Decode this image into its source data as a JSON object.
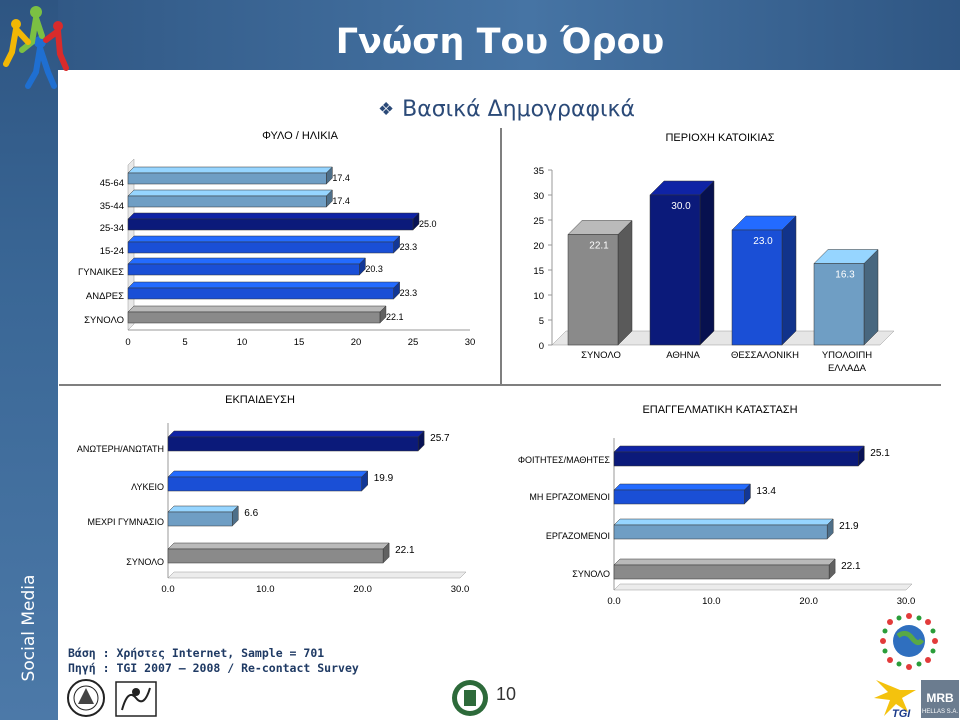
{
  "header": {
    "title": "Γνώση Του Όρου"
  },
  "subtitle": "Βασικά Δημογραφικά",
  "sidebar": {
    "label": "Social Media"
  },
  "footnote": {
    "line1": "Βάση : Χρήστες Internet, Sample = 701",
    "line2": "Πηγή : TGI 2007 – 2008 / Re-contact Survey"
  },
  "page_number": "10",
  "colors": {
    "bar_dark": "#0b1a7a",
    "bar_blue": "#1a4fd6",
    "bar_light": "#6f9ec4",
    "bar_gray": "#8a8a8a",
    "header_blue": "#3a6796"
  },
  "logos": [
    "people-logo",
    "university-seal-icon",
    "lab-seal-icon",
    "third-seal-icon",
    "globe-people-icon",
    "tgi-logo",
    "mrb-logo"
  ],
  "mrb_text": {
    "name": "MRB",
    "sub": "HELLAS S.A."
  },
  "tgi_text": "TGI",
  "chart_data": [
    {
      "id": "gender_age",
      "type": "bar",
      "orientation": "horizontal",
      "title": "ΦΥΛΟ / ΗΛΙΚΙΑ",
      "categories": [
        "45-64",
        "35-44",
        "25-34",
        "15-24",
        "ΓΥΝΑΙΚΕΣ",
        "ΑΝΔΡΕΣ",
        "ΣΥΝΟΛΟ"
      ],
      "values": [
        17.4,
        17.4,
        25.0,
        23.3,
        20.3,
        23.3,
        22.1
      ],
      "value_labels": [
        "17.4",
        "17.4",
        "25.0",
        "23.3",
        "20.3",
        "23.3",
        "22.1"
      ],
      "bar_colors": [
        "#6f9ec4",
        "#6f9ec4",
        "#0b1a7a",
        "#1a4fd6",
        "#1a4fd6",
        "#1a4fd6",
        "#8a8a8a"
      ],
      "xlim": [
        0,
        30
      ],
      "ticks": [
        "0",
        "5",
        "10",
        "15",
        "20",
        "25",
        "30"
      ]
    },
    {
      "id": "region",
      "type": "bar",
      "orientation": "vertical",
      "title": "ΠΕΡΙΟΧΗ ΚΑΤΟΙΚΙΑΣ",
      "categories": [
        "ΣΥΝΟΛΟ",
        "ΑΘΗΝΑ",
        "ΘΕΣΣΑΛΟΝΙΚΗ",
        "ΥΠΟΛΟΙΠΗ ΕΛΛΑΔΑ"
      ],
      "category_lines": [
        [
          "ΣΥΝΟΛΟ"
        ],
        [
          "ΑΘΗΝΑ"
        ],
        [
          "ΘΕΣΣΑΛΟΝΙΚΗ"
        ],
        [
          "ΥΠΟΛΟΙΠΗ",
          "ΕΛΛΑΔΑ"
        ]
      ],
      "values": [
        22.1,
        30.0,
        23.0,
        16.3
      ],
      "value_labels": [
        "22.1",
        "30.0",
        "23.0",
        "16.3"
      ],
      "bar_colors": [
        "#8a8a8a",
        "#0b1a7a",
        "#1a4fd6",
        "#6f9ec4"
      ],
      "ylim": [
        0,
        35
      ],
      "ticks": [
        "0",
        "5",
        "10",
        "15",
        "20",
        "25",
        "30",
        "35"
      ]
    },
    {
      "id": "education",
      "type": "bar",
      "orientation": "horizontal",
      "title": "ΕΚΠΑΙΔΕΥΣΗ",
      "categories": [
        "ΑΝΩΤΕΡΗ/ΑΝΩΤΑΤΗ",
        "ΛΥΚΕΙΟ",
        "ΜΕΧΡΙ ΓΥΜΝΑΣΙΟ",
        "ΣΥΝΟΛΟ"
      ],
      "values": [
        25.7,
        19.9,
        6.6,
        22.1
      ],
      "value_labels": [
        "25.7",
        "19.9",
        "6.6",
        "22.1"
      ],
      "bar_colors": [
        "#0b1a7a",
        "#1a4fd6",
        "#6f9ec4",
        "#8a8a8a"
      ],
      "xlim": [
        0,
        30
      ],
      "ticks": [
        "0.0",
        "10.0",
        "20.0",
        "30.0"
      ]
    },
    {
      "id": "occupation",
      "type": "bar",
      "orientation": "horizontal",
      "title": "ΕΠΑΓΓΕΛΜΑΤΙΚΗ ΚΑΤΑΣΤΑΣΗ",
      "categories": [
        "ΦΟΙΤΗΤΕΣ/ΜΑΘΗΤΕΣ",
        "ΜΗ ΕΡΓΑΖΟΜΕΝΟΙ",
        "ΕΡΓΑΖΟΜΕΝΟΙ",
        "ΣΥΝΟΛΟ"
      ],
      "values": [
        25.1,
        13.4,
        21.9,
        22.1
      ],
      "value_labels": [
        "25.1",
        "13.4",
        "21.9",
        "22.1"
      ],
      "bar_colors": [
        "#0b1a7a",
        "#1a4fd6",
        "#6f9ec4",
        "#8a8a8a"
      ],
      "xlim": [
        0,
        30
      ],
      "ticks": [
        "0.0",
        "10.0",
        "20.0",
        "30.0"
      ]
    }
  ]
}
